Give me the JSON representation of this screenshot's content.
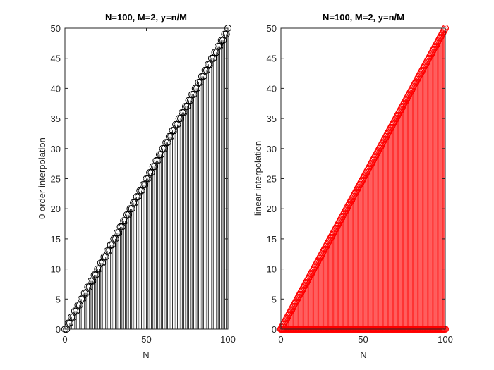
{
  "chart_data": [
    {
      "type": "stem",
      "title": "N=100, M=2, y=n/M",
      "xlabel": "N",
      "ylabel": "0 order interpolation",
      "xlim": [
        0,
        100
      ],
      "ylim": [
        0,
        50
      ],
      "xticks": [
        0,
        50,
        100
      ],
      "yticks": [
        0,
        5,
        10,
        15,
        20,
        25,
        30,
        35,
        40,
        45,
        50
      ],
      "color": "#000000",
      "marker": "open-circle",
      "series": [
        {
          "x": [
            0,
            1,
            2,
            3,
            4,
            5,
            6,
            7,
            8,
            9,
            10,
            11,
            12,
            13,
            14,
            15,
            16,
            17,
            18,
            19,
            20,
            21,
            22,
            23,
            24,
            25,
            26,
            27,
            28,
            29,
            30,
            31,
            32,
            33,
            34,
            35,
            36,
            37,
            38,
            39,
            40,
            41,
            42,
            43,
            44,
            45,
            46,
            47,
            48,
            49,
            50,
            51,
            52,
            53,
            54,
            55,
            56,
            57,
            58,
            59,
            60,
            61,
            62,
            63,
            64,
            65,
            66,
            67,
            68,
            69,
            70,
            71,
            72,
            73,
            74,
            75,
            76,
            77,
            78,
            79,
            80,
            81,
            82,
            83,
            84,
            85,
            86,
            87,
            88,
            89,
            90,
            91,
            92,
            93,
            94,
            95,
            96,
            97,
            98,
            99,
            100
          ],
          "y": [
            0,
            0,
            1,
            1,
            2,
            2,
            3,
            3,
            4,
            4,
            5,
            5,
            6,
            6,
            7,
            7,
            8,
            8,
            9,
            9,
            10,
            10,
            11,
            11,
            12,
            12,
            13,
            13,
            14,
            14,
            15,
            15,
            16,
            16,
            17,
            17,
            18,
            18,
            19,
            19,
            20,
            20,
            21,
            21,
            22,
            22,
            23,
            23,
            24,
            24,
            25,
            25,
            26,
            26,
            27,
            27,
            28,
            28,
            29,
            29,
            30,
            30,
            31,
            31,
            32,
            32,
            33,
            33,
            34,
            34,
            35,
            35,
            36,
            36,
            37,
            37,
            38,
            38,
            39,
            39,
            40,
            40,
            41,
            41,
            42,
            42,
            43,
            43,
            44,
            44,
            45,
            45,
            46,
            46,
            47,
            47,
            48,
            48,
            49,
            49,
            50
          ]
        }
      ]
    },
    {
      "type": "stem",
      "title": "N=100, M=2, y=n/M",
      "xlabel": "N",
      "ylabel": "linear interpolation",
      "xlim": [
        0,
        100
      ],
      "ylim": [
        0,
        50
      ],
      "xticks": [
        0,
        50,
        100
      ],
      "yticks": [
        0,
        5,
        10,
        15,
        20,
        25,
        30,
        35,
        40,
        45,
        50
      ],
      "color": "#ff0000",
      "marker": "open-circle",
      "series": [
        {
          "x_start": 0,
          "x_end": 100,
          "x_step": 0.5,
          "y_rule": "y = x / 2",
          "note": "stems from 0 to y at every 0.5 step; plus circles along y=0 across full range"
        }
      ]
    }
  ]
}
